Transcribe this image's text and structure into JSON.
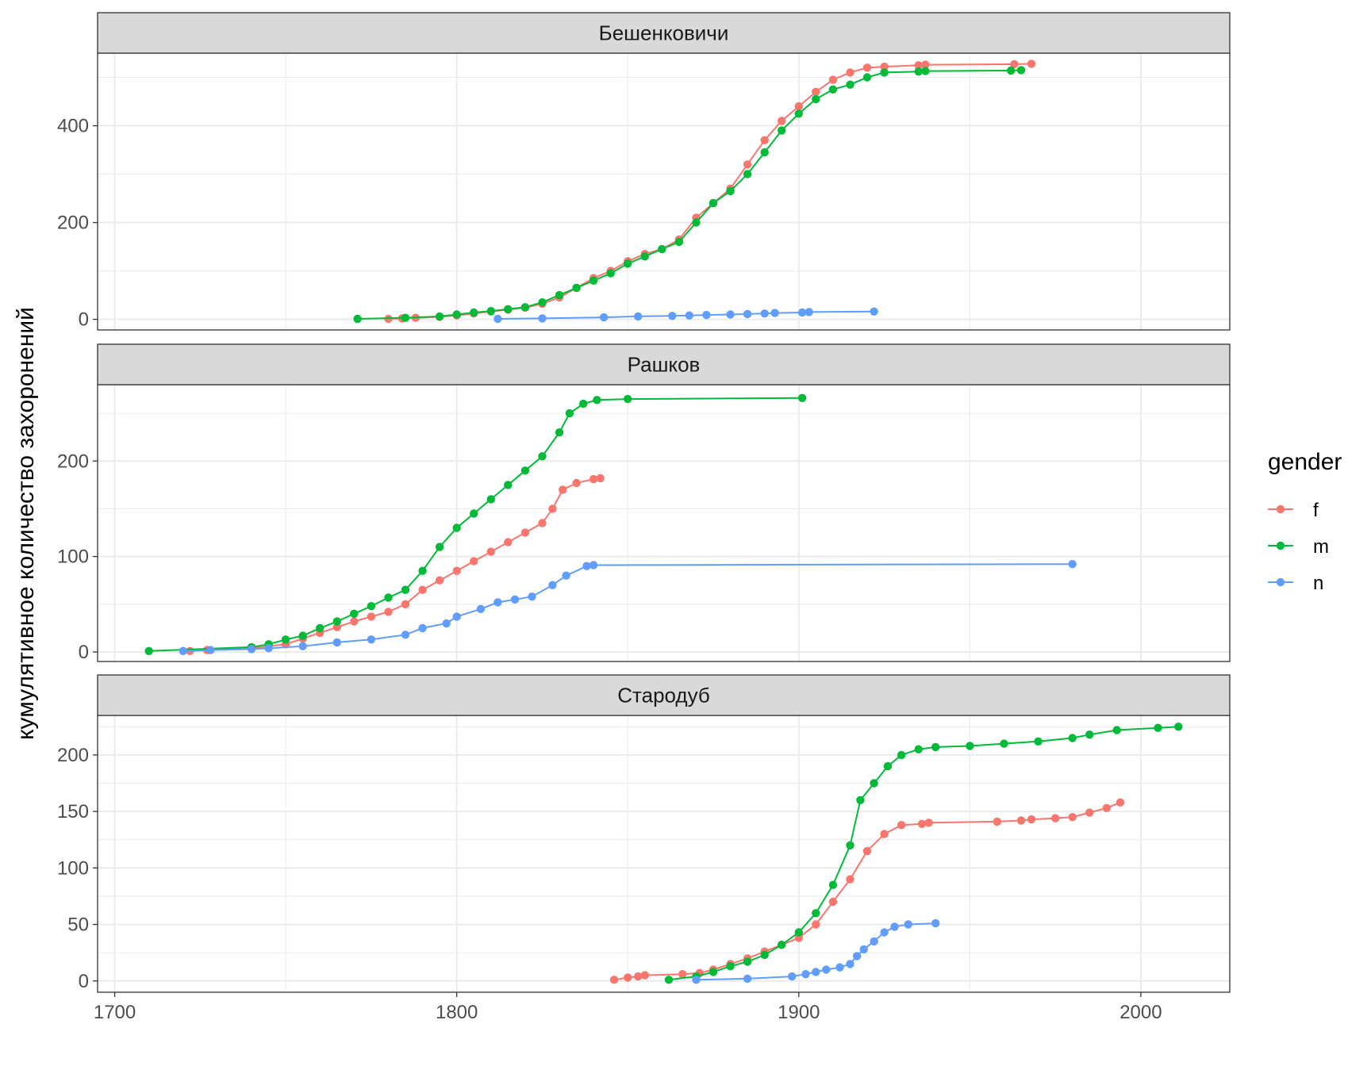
{
  "chart_data": {
    "type": "line",
    "ylabel": "кумулятивное количество захоронений",
    "xlabel": "",
    "xlim": [
      1695,
      2026
    ],
    "x_ticks": [
      1700,
      1800,
      1900,
      2000
    ],
    "legend": {
      "title": "gender",
      "placement": "right"
    },
    "colors": {
      "f": "#F8766D",
      "m": "#00BA38",
      "n": "#619CFF"
    },
    "facets": [
      {
        "title": "Бешенковичи",
        "ylim": [
          -22,
          550
        ],
        "y_ticks": [
          0,
          200,
          400
        ],
        "series": [
          {
            "name": "f",
            "points": [
              [
                1780,
                1
              ],
              [
                1784,
                2
              ],
              [
                1788,
                3
              ],
              [
                1795,
                5
              ],
              [
                1800,
                8
              ],
              [
                1805,
                12
              ],
              [
                1810,
                16
              ],
              [
                1815,
                20
              ],
              [
                1820,
                24
              ],
              [
                1825,
                32
              ],
              [
                1830,
                45
              ],
              [
                1835,
                65
              ],
              [
                1840,
                85
              ],
              [
                1845,
                100
              ],
              [
                1850,
                120
              ],
              [
                1855,
                135
              ],
              [
                1860,
                145
              ],
              [
                1865,
                165
              ],
              [
                1870,
                210
              ],
              [
                1875,
                240
              ],
              [
                1880,
                270
              ],
              [
                1885,
                320
              ],
              [
                1890,
                370
              ],
              [
                1895,
                410
              ],
              [
                1900,
                440
              ],
              [
                1905,
                470
              ],
              [
                1910,
                495
              ],
              [
                1915,
                510
              ],
              [
                1920,
                520
              ],
              [
                1925,
                522
              ],
              [
                1935,
                525
              ],
              [
                1937,
                526
              ],
              [
                1963,
                527
              ],
              [
                1968,
                528
              ]
            ]
          },
          {
            "name": "m",
            "points": [
              [
                1771,
                1
              ],
              [
                1785,
                3
              ],
              [
                1795,
                6
              ],
              [
                1800,
                10
              ],
              [
                1805,
                14
              ],
              [
                1810,
                17
              ],
              [
                1815,
                21
              ],
              [
                1820,
                25
              ],
              [
                1825,
                35
              ],
              [
                1830,
                50
              ],
              [
                1835,
                65
              ],
              [
                1840,
                80
              ],
              [
                1845,
                95
              ],
              [
                1850,
                115
              ],
              [
                1855,
                130
              ],
              [
                1860,
                145
              ],
              [
                1865,
                160
              ],
              [
                1870,
                200
              ],
              [
                1875,
                240
              ],
              [
                1880,
                265
              ],
              [
                1885,
                300
              ],
              [
                1890,
                345
              ],
              [
                1895,
                390
              ],
              [
                1900,
                425
              ],
              [
                1905,
                455
              ],
              [
                1910,
                475
              ],
              [
                1915,
                485
              ],
              [
                1920,
                500
              ],
              [
                1925,
                510
              ],
              [
                1935,
                512
              ],
              [
                1937,
                513
              ],
              [
                1962,
                514
              ],
              [
                1965,
                515
              ]
            ]
          },
          {
            "name": "n",
            "points": [
              [
                1812,
                1
              ],
              [
                1825,
                2
              ],
              [
                1843,
                4
              ],
              [
                1853,
                6
              ],
              [
                1863,
                7
              ],
              [
                1868,
                8
              ],
              [
                1873,
                9
              ],
              [
                1880,
                10
              ],
              [
                1885,
                11
              ],
              [
                1890,
                12
              ],
              [
                1893,
                13
              ],
              [
                1901,
                14
              ],
              [
                1903,
                15
              ],
              [
                1922,
                16
              ]
            ]
          }
        ]
      },
      {
        "title": "Рашков",
        "ylim": [
          -10,
          280
        ],
        "y_ticks": [
          0,
          100,
          200
        ],
        "series": [
          {
            "name": "f",
            "points": [
              [
                1722,
                1
              ],
              [
                1727,
                2
              ],
              [
                1740,
                4
              ],
              [
                1750,
                8
              ],
              [
                1755,
                14
              ],
              [
                1760,
                20
              ],
              [
                1765,
                26
              ],
              [
                1770,
                32
              ],
              [
                1775,
                37
              ],
              [
                1780,
                42
              ],
              [
                1785,
                50
              ],
              [
                1790,
                65
              ],
              [
                1795,
                75
              ],
              [
                1800,
                85
              ],
              [
                1805,
                95
              ],
              [
                1810,
                105
              ],
              [
                1815,
                115
              ],
              [
                1820,
                125
              ],
              [
                1825,
                135
              ],
              [
                1828,
                150
              ],
              [
                1831,
                170
              ],
              [
                1835,
                177
              ],
              [
                1840,
                181
              ],
              [
                1842,
                182
              ]
            ]
          },
          {
            "name": "m",
            "points": [
              [
                1710,
                1
              ],
              [
                1740,
                5
              ],
              [
                1745,
                8
              ],
              [
                1750,
                13
              ],
              [
                1755,
                17
              ],
              [
                1760,
                25
              ],
              [
                1765,
                32
              ],
              [
                1770,
                40
              ],
              [
                1775,
                48
              ],
              [
                1780,
                57
              ],
              [
                1785,
                65
              ],
              [
                1790,
                85
              ],
              [
                1795,
                110
              ],
              [
                1800,
                130
              ],
              [
                1805,
                145
              ],
              [
                1810,
                160
              ],
              [
                1815,
                175
              ],
              [
                1820,
                190
              ],
              [
                1825,
                205
              ],
              [
                1830,
                230
              ],
              [
                1833,
                250
              ],
              [
                1837,
                260
              ],
              [
                1841,
                264
              ],
              [
                1850,
                265
              ],
              [
                1901,
                266
              ]
            ]
          },
          {
            "name": "n",
            "points": [
              [
                1720,
                1
              ],
              [
                1728,
                2
              ],
              [
                1740,
                3
              ],
              [
                1745,
                4
              ],
              [
                1755,
                6
              ],
              [
                1765,
                10
              ],
              [
                1775,
                13
              ],
              [
                1785,
                18
              ],
              [
                1790,
                25
              ],
              [
                1797,
                30
              ],
              [
                1800,
                37
              ],
              [
                1807,
                45
              ],
              [
                1812,
                52
              ],
              [
                1817,
                55
              ],
              [
                1822,
                58
              ],
              [
                1828,
                70
              ],
              [
                1832,
                80
              ],
              [
                1838,
                90
              ],
              [
                1840,
                91
              ],
              [
                1980,
                92
              ]
            ]
          }
        ]
      },
      {
        "title": "Стародуб",
        "ylim": [
          -10,
          235
        ],
        "y_ticks": [
          0,
          50,
          100,
          150,
          200
        ],
        "series": [
          {
            "name": "f",
            "points": [
              [
                1846,
                1
              ],
              [
                1850,
                3
              ],
              [
                1853,
                4
              ],
              [
                1855,
                5
              ],
              [
                1866,
                6
              ],
              [
                1871,
                7
              ],
              [
                1875,
                10
              ],
              [
                1880,
                15
              ],
              [
                1885,
                20
              ],
              [
                1890,
                26
              ],
              [
                1895,
                32
              ],
              [
                1900,
                38
              ],
              [
                1905,
                50
              ],
              [
                1910,
                70
              ],
              [
                1915,
                90
              ],
              [
                1920,
                115
              ],
              [
                1925,
                130
              ],
              [
                1930,
                138
              ],
              [
                1936,
                139
              ],
              [
                1938,
                140
              ],
              [
                1958,
                141
              ],
              [
                1965,
                142
              ],
              [
                1968,
                143
              ],
              [
                1975,
                144
              ],
              [
                1980,
                145
              ],
              [
                1985,
                149
              ],
              [
                1990,
                153
              ],
              [
                1994,
                158
              ]
            ]
          },
          {
            "name": "m",
            "points": [
              [
                1862,
                1
              ],
              [
                1870,
                4
              ],
              [
                1875,
                8
              ],
              [
                1880,
                13
              ],
              [
                1885,
                17
              ],
              [
                1890,
                23
              ],
              [
                1895,
                32
              ],
              [
                1900,
                43
              ],
              [
                1905,
                60
              ],
              [
                1910,
                85
              ],
              [
                1915,
                120
              ],
              [
                1918,
                160
              ],
              [
                1922,
                175
              ],
              [
                1926,
                190
              ],
              [
                1930,
                200
              ],
              [
                1935,
                205
              ],
              [
                1940,
                207
              ],
              [
                1950,
                208
              ],
              [
                1960,
                210
              ],
              [
                1970,
                212
              ],
              [
                1980,
                215
              ],
              [
                1985,
                218
              ],
              [
                1993,
                222
              ],
              [
                2005,
                224
              ],
              [
                2011,
                225
              ]
            ]
          },
          {
            "name": "n",
            "points": [
              [
                1870,
                1
              ],
              [
                1885,
                2
              ],
              [
                1898,
                4
              ],
              [
                1902,
                6
              ],
              [
                1905,
                8
              ],
              [
                1908,
                10
              ],
              [
                1912,
                12
              ],
              [
                1915,
                15
              ],
              [
                1917,
                22
              ],
              [
                1919,
                28
              ],
              [
                1922,
                35
              ],
              [
                1925,
                43
              ],
              [
                1928,
                48
              ],
              [
                1932,
                50
              ],
              [
                1940,
                51
              ]
            ]
          }
        ]
      }
    ]
  }
}
